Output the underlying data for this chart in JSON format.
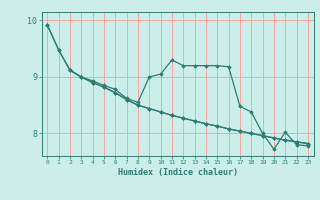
{
  "title": "",
  "xlabel": "Humidex (Indice chaleur)",
  "bg_color": "#cceee8",
  "grid_color": "#ff9999",
  "line_color": "#2e7d72",
  "xlim": [
    -0.5,
    23.5
  ],
  "ylim": [
    7.6,
    10.15
  ],
  "yticks": [
    8,
    9,
    10
  ],
  "xticks": [
    0,
    1,
    2,
    3,
    4,
    5,
    6,
    7,
    8,
    9,
    10,
    11,
    12,
    13,
    14,
    15,
    16,
    17,
    18,
    19,
    20,
    21,
    22,
    23
  ],
  "line1_x": [
    0,
    1,
    2,
    3,
    4,
    5,
    6,
    7,
    8,
    9,
    10,
    11,
    12,
    13,
    14,
    15,
    16,
    17,
    18,
    19,
    20,
    21,
    22,
    23
  ],
  "line1_y": [
    9.92,
    9.48,
    9.12,
    9.0,
    8.93,
    8.85,
    8.78,
    8.62,
    8.55,
    9.0,
    9.05,
    9.3,
    9.2,
    9.2,
    9.2,
    9.2,
    9.18,
    8.48,
    8.38,
    8.0,
    7.72,
    8.02,
    7.8,
    7.78
  ],
  "line2_x": [
    0,
    1,
    2,
    3,
    4,
    5,
    6,
    7,
    8,
    9,
    10,
    11,
    12,
    13,
    14,
    15,
    16,
    17,
    18,
    19,
    20,
    21,
    22,
    23
  ],
  "line2_y": [
    9.92,
    9.48,
    9.12,
    9.0,
    8.9,
    8.82,
    8.72,
    8.6,
    8.5,
    8.44,
    8.38,
    8.32,
    8.27,
    8.22,
    8.17,
    8.13,
    8.08,
    8.04,
    8.0,
    7.96,
    7.92,
    7.88,
    7.85,
    7.82
  ],
  "line3_x": [
    2,
    3,
    4,
    5,
    6,
    7,
    8,
    9,
    10,
    11,
    12,
    13,
    14,
    15,
    16,
    17,
    18,
    19,
    20,
    21,
    22,
    23
  ],
  "line3_y": [
    9.12,
    9.0,
    8.9,
    8.82,
    8.72,
    8.6,
    8.5,
    8.44,
    8.38,
    8.32,
    8.27,
    8.22,
    8.17,
    8.13,
    8.08,
    8.04,
    8.0,
    7.96,
    7.92,
    7.88,
    7.85,
    7.82
  ]
}
